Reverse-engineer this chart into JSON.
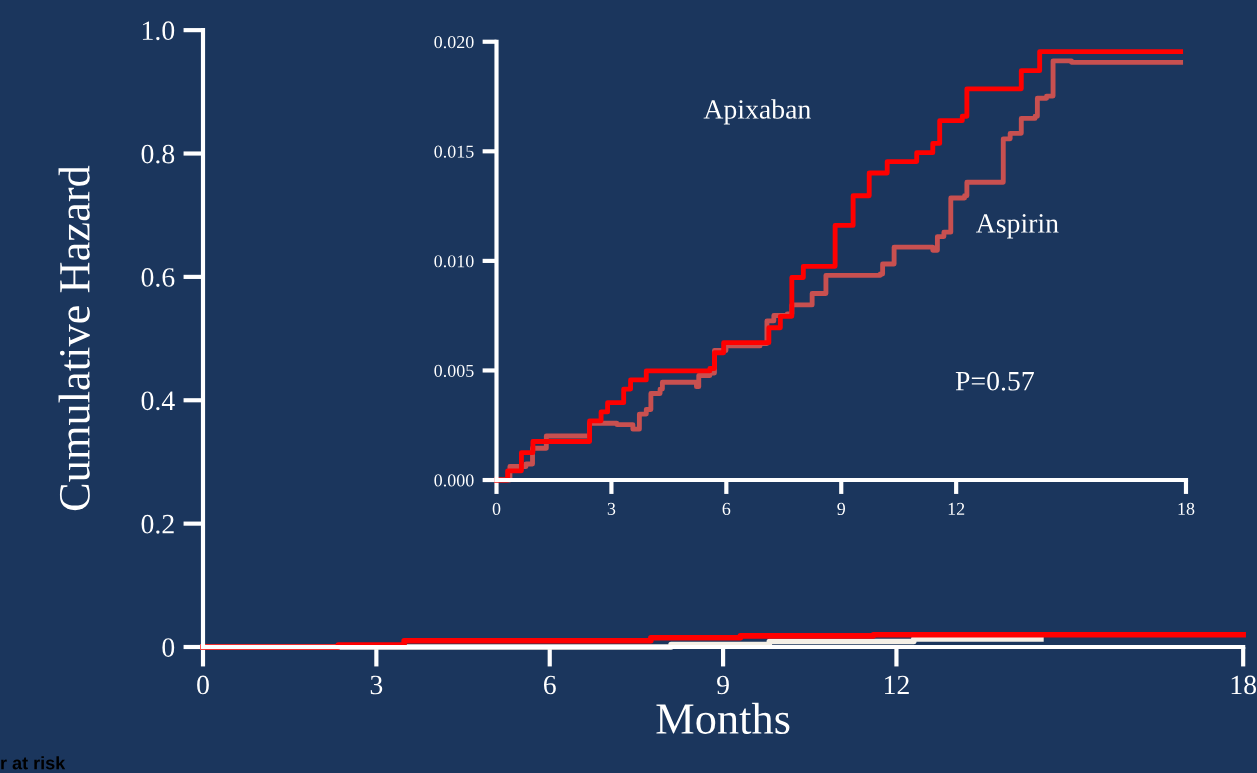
{
  "chart_data": [
    {
      "type": "step",
      "ylabel": "Cumulative Hazard",
      "xlabel": "Months",
      "xlim": [
        0,
        18
      ],
      "xticks": [
        0,
        3,
        6,
        9,
        12,
        18
      ],
      "ylim": [
        0,
        1.0
      ],
      "yticks": [
        {
          "value": 0,
          "label": "0"
        },
        0.2,
        0.4,
        0.6,
        0.8,
        {
          "value": 1.0,
          "label": "1.0"
        }
      ],
      "grid": false,
      "legend": false,
      "annotations": [
        "r at risk"
      ],
      "series": [
        {
          "color": "#f5f0e6",
          "x": [
            0,
            8.1,
            9.8,
            12.3,
            14.5
          ],
          "values": [
            0,
            0.004,
            0.009,
            0.013,
            0.013
          ]
        },
        {
          "color": "#ff0000",
          "x": [
            0,
            2.34,
            3.48,
            7.75,
            9.3,
            11.6,
            18
          ],
          "values": [
            0,
            0.003,
            0.01,
            0.015,
            0.018,
            0.02,
            0.02
          ]
        }
      ]
    },
    {
      "type": "step",
      "xlim": [
        0,
        18
      ],
      "xticks": [
        0,
        3,
        6,
        9,
        12,
        18
      ],
      "ylim": [
        0,
        0.02
      ],
      "yticks": [
        {
          "value": 0,
          "label": "0.000"
        },
        0.005,
        {
          "value": 0.01,
          "label": "0.010"
        },
        0.015,
        {
          "value": 0.02,
          "label": "0.020"
        }
      ],
      "grid": false,
      "legend": false,
      "annotations": [
        "P=0.57"
      ],
      "series": [
        {
          "name": "Aspirin",
          "color": "#c85050",
          "x": [
            0,
            0.35,
            0.77,
            0.94,
            1.3,
            2.43,
            3.14,
            3.56,
            3.73,
            3.91,
            4.03,
            4.27,
            4.33,
            5.22,
            5.28,
            5.57,
            5.69,
            5.99,
            6.88,
            7.06,
            7.24,
            7.59,
            7.71,
            8.24,
            8.6,
            10.02,
            10.08,
            10.38,
            11.39,
            11.51,
            11.68,
            11.86,
            12.22,
            12.28,
            13.23,
            13.41,
            13.7,
            14.06,
            14.12,
            14.36,
            14.53,
            15.01,
            17.86
          ],
          "values": [
            0,
            0.00062,
            0.00073,
            0.00145,
            0.00201,
            0.00259,
            0.00253,
            0.00232,
            0.00301,
            0.00322,
            0.00395,
            0.00415,
            0.00446,
            0.00426,
            0.00477,
            0.00488,
            0.00591,
            0.00612,
            0.00623,
            0.00726,
            0.00751,
            0.00758,
            0.00799,
            0.00851,
            0.00934,
            0.0094,
            0.00986,
            0.01063,
            0.01048,
            0.01111,
            0.01131,
            0.01287,
            0.01297,
            0.01359,
            0.01557,
            0.01582,
            0.0165,
            0.0166,
            0.01742,
            0.01752,
            0.01913,
            0.01906,
            0.01906
          ]
        },
        {
          "name": "Apixaban",
          "color": "#ff0000",
          "x": [
            0,
            0.29,
            0.65,
            0.95,
            2.43,
            2.73,
            2.9,
            3.32,
            3.5,
            3.91,
            5.57,
            5.69,
            5.93,
            7.11,
            7.41,
            7.71,
            8.01,
            8.84,
            9.31,
            9.73,
            10.2,
            10.97,
            11.39,
            11.57,
            12.16,
            12.28,
            13.7,
            14.18,
            17.86
          ],
          "values": [
            0,
            0.00042,
            0.00125,
            0.00176,
            0.0027,
            0.00311,
            0.00353,
            0.00415,
            0.00457,
            0.00498,
            0.00509,
            0.00581,
            0.00627,
            0.00695,
            0.00747,
            0.00924,
            0.00975,
            0.01162,
            0.01297,
            0.01401,
            0.01453,
            0.01494,
            0.01536,
            0.0164,
            0.0166,
            0.01785,
            0.01868,
            0.01955,
            0.01955
          ]
        }
      ]
    }
  ]
}
